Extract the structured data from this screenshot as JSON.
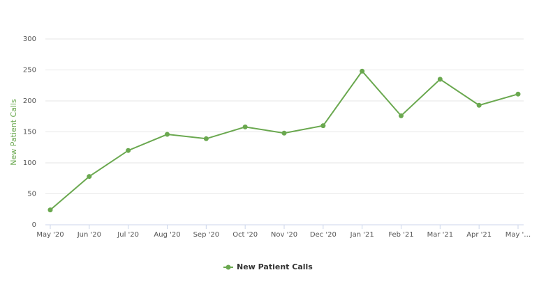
{
  "chart_data": {
    "type": "line",
    "y_label": "New Patient Calls",
    "categories": [
      "May '20",
      "Jun '20",
      "Jul '20",
      "Aug '20",
      "Sep '20",
      "Oct '20",
      "Nov '20",
      "Dec '20",
      "Jan '21",
      "Feb '21",
      "Mar '21",
      "Apr '21",
      "May '…"
    ],
    "series": [
      {
        "name": "New Patient Calls",
        "color": "#6aa84f",
        "values": [
          24,
          78,
          120,
          146,
          139,
          158,
          148,
          160,
          248,
          176,
          235,
          193,
          211
        ]
      }
    ],
    "ylim": [
      0,
      300
    ],
    "yticks": [
      0,
      50,
      100,
      150,
      200,
      250,
      300
    ],
    "grid": true,
    "legend": "bottom"
  }
}
